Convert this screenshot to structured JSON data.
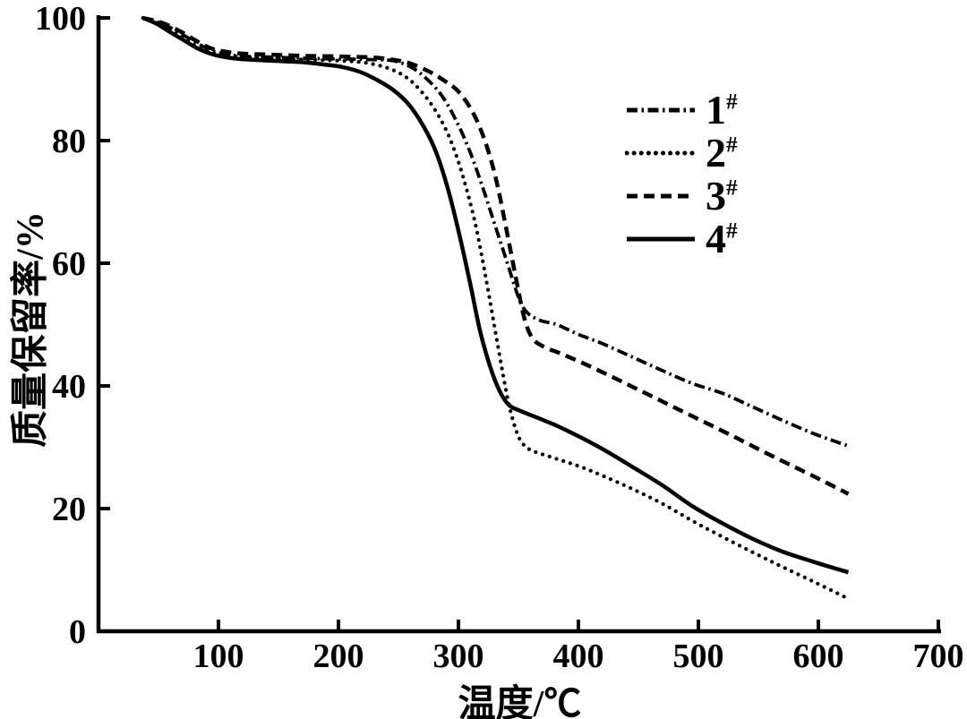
{
  "figure": {
    "background": "#ffffff",
    "ink": "#000000"
  },
  "chart_data": {
    "type": "line",
    "title": "",
    "xlabel": "温度/℃",
    "ylabel": "质量保留率/%",
    "xlim": [
      0,
      700
    ],
    "ylim": [
      0,
      100
    ],
    "x_ticks": [
      100,
      200,
      300,
      400,
      500,
      600,
      700
    ],
    "y_ticks": [
      0,
      20,
      40,
      60,
      80,
      100
    ],
    "grid": false,
    "legend_position": "upper-right",
    "series": [
      {
        "name": "1#",
        "label": "1",
        "label_sup": "#",
        "style": "dashdot",
        "color": "#000000",
        "points": [
          [
            37,
            100
          ],
          [
            48,
            99.4
          ],
          [
            58,
            98.6
          ],
          [
            70,
            97.3
          ],
          [
            82,
            95.9
          ],
          [
            93,
            94.8
          ],
          [
            103,
            94.2
          ],
          [
            118,
            93.8
          ],
          [
            145,
            93.6
          ],
          [
            175,
            93.4
          ],
          [
            205,
            93.3
          ],
          [
            228,
            93.2
          ],
          [
            246,
            93.0
          ],
          [
            262,
            91.8
          ],
          [
            276,
            89.6
          ],
          [
            288,
            86.8
          ],
          [
            300,
            82.5
          ],
          [
            310,
            78
          ],
          [
            320,
            72.5
          ],
          [
            330,
            66.5
          ],
          [
            340,
            60.5
          ],
          [
            350,
            54.5
          ],
          [
            357,
            52
          ],
          [
            368,
            50.7
          ],
          [
            382,
            50
          ],
          [
            400,
            48.4
          ],
          [
            420,
            46.9
          ],
          [
            445,
            44.7
          ],
          [
            470,
            42.5
          ],
          [
            495,
            40.4
          ],
          [
            520,
            38.8
          ],
          [
            545,
            36.6
          ],
          [
            570,
            34.4
          ],
          [
            595,
            32.3
          ],
          [
            612,
            31.1
          ],
          [
            625,
            30.2
          ]
        ]
      },
      {
        "name": "2#",
        "label": "2",
        "label_sup": "#",
        "style": "dotted",
        "color": "#000000",
        "points": [
          [
            37,
            100
          ],
          [
            48,
            99.2
          ],
          [
            58,
            98.2
          ],
          [
            70,
            96.8
          ],
          [
            82,
            95.3
          ],
          [
            93,
            94.4
          ],
          [
            103,
            94.0
          ],
          [
            118,
            93.7
          ],
          [
            145,
            93.4
          ],
          [
            175,
            93.2
          ],
          [
            203,
            93.0
          ],
          [
            222,
            92.7
          ],
          [
            240,
            91.9
          ],
          [
            256,
            90.4
          ],
          [
            270,
            87.8
          ],
          [
            283,
            84.2
          ],
          [
            294,
            79.8
          ],
          [
            304,
            74
          ],
          [
            314,
            66.5
          ],
          [
            323,
            57.5
          ],
          [
            332,
            47.5
          ],
          [
            341,
            38
          ],
          [
            348,
            32.8
          ],
          [
            354,
            30.5
          ],
          [
            362,
            29.4
          ],
          [
            382,
            28.1
          ],
          [
            402,
            26.8
          ],
          [
            422,
            25.2
          ],
          [
            445,
            23.2
          ],
          [
            470,
            20.8
          ],
          [
            495,
            18
          ],
          [
            520,
            15.4
          ],
          [
            545,
            12.9
          ],
          [
            570,
            10.5
          ],
          [
            598,
            7.9
          ],
          [
            625,
            5.3
          ]
        ]
      },
      {
        "name": "3#",
        "label": "3",
        "label_sup": "#",
        "style": "dashed",
        "color": "#000000",
        "points": [
          [
            37,
            100
          ],
          [
            48,
            99.5
          ],
          [
            58,
            98.8
          ],
          [
            70,
            97.6
          ],
          [
            82,
            96.2
          ],
          [
            93,
            95.1
          ],
          [
            103,
            94.6
          ],
          [
            118,
            94.2
          ],
          [
            145,
            94.0
          ],
          [
            175,
            93.8
          ],
          [
            205,
            93.7
          ],
          [
            232,
            93.5
          ],
          [
            256,
            92.8
          ],
          [
            274,
            91.4
          ],
          [
            288,
            89.8
          ],
          [
            300,
            88
          ],
          [
            312,
            84.6
          ],
          [
            322,
            80
          ],
          [
            331,
            74
          ],
          [
            340,
            65.5
          ],
          [
            348,
            57.5
          ],
          [
            355,
            51
          ],
          [
            362,
            47.7
          ],
          [
            372,
            46.3
          ],
          [
            385,
            45.3
          ],
          [
            405,
            43.6
          ],
          [
            430,
            41.3
          ],
          [
            455,
            38.9
          ],
          [
            480,
            36.5
          ],
          [
            505,
            34.1
          ],
          [
            530,
            31.7
          ],
          [
            555,
            29.2
          ],
          [
            580,
            26.8
          ],
          [
            605,
            24.4
          ],
          [
            625,
            22.4
          ]
        ]
      },
      {
        "name": "4#",
        "label": "4",
        "label_sup": "#",
        "style": "solid",
        "color": "#000000",
        "points": [
          [
            37,
            100
          ],
          [
            48,
            99.1
          ],
          [
            58,
            97.9
          ],
          [
            70,
            96.5
          ],
          [
            82,
            95.1
          ],
          [
            93,
            94.2
          ],
          [
            103,
            93.7
          ],
          [
            118,
            93.3
          ],
          [
            145,
            93.0
          ],
          [
            168,
            92.8
          ],
          [
            188,
            92.4
          ],
          [
            203,
            92.0
          ],
          [
            218,
            91.2
          ],
          [
            232,
            89.9
          ],
          [
            246,
            88.2
          ],
          [
            259,
            85.8
          ],
          [
            271,
            82.3
          ],
          [
            281,
            78.3
          ],
          [
            291,
            72.3
          ],
          [
            301,
            64.5
          ],
          [
            310,
            56.5
          ],
          [
            318,
            49
          ],
          [
            326,
            43.4
          ],
          [
            334,
            39.3
          ],
          [
            342,
            36.9
          ],
          [
            352,
            35.9
          ],
          [
            366,
            34.8
          ],
          [
            382,
            33.5
          ],
          [
            402,
            31.6
          ],
          [
            422,
            29.5
          ],
          [
            445,
            26.8
          ],
          [
            470,
            23.8
          ],
          [
            495,
            20.4
          ],
          [
            520,
            17.6
          ],
          [
            545,
            15.1
          ],
          [
            570,
            13
          ],
          [
            598,
            11.2
          ],
          [
            625,
            9.6
          ]
        ]
      }
    ]
  }
}
